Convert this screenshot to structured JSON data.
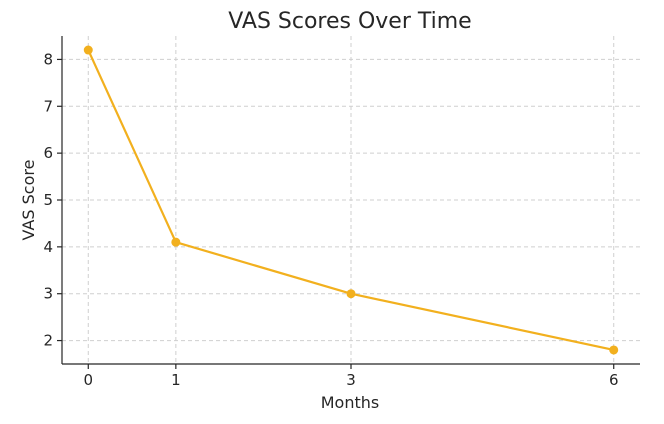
{
  "chart_data": {
    "type": "line",
    "title": "VAS Scores Over Time",
    "xlabel": "Months",
    "ylabel": "VAS Score",
    "x": [
      0,
      1,
      3,
      6
    ],
    "x_ticks": [
      0,
      1,
      3,
      6
    ],
    "y_ticks": [
      2,
      3,
      4,
      5,
      6,
      7,
      8
    ],
    "xlim": [
      -0.3,
      6.3
    ],
    "ylim": [
      1.5,
      8.5
    ],
    "grid": true,
    "series": [
      {
        "values": [
          8.2,
          4.1,
          3.0,
          1.8
        ],
        "color": "#f2b01e",
        "marker": "circle"
      }
    ]
  }
}
